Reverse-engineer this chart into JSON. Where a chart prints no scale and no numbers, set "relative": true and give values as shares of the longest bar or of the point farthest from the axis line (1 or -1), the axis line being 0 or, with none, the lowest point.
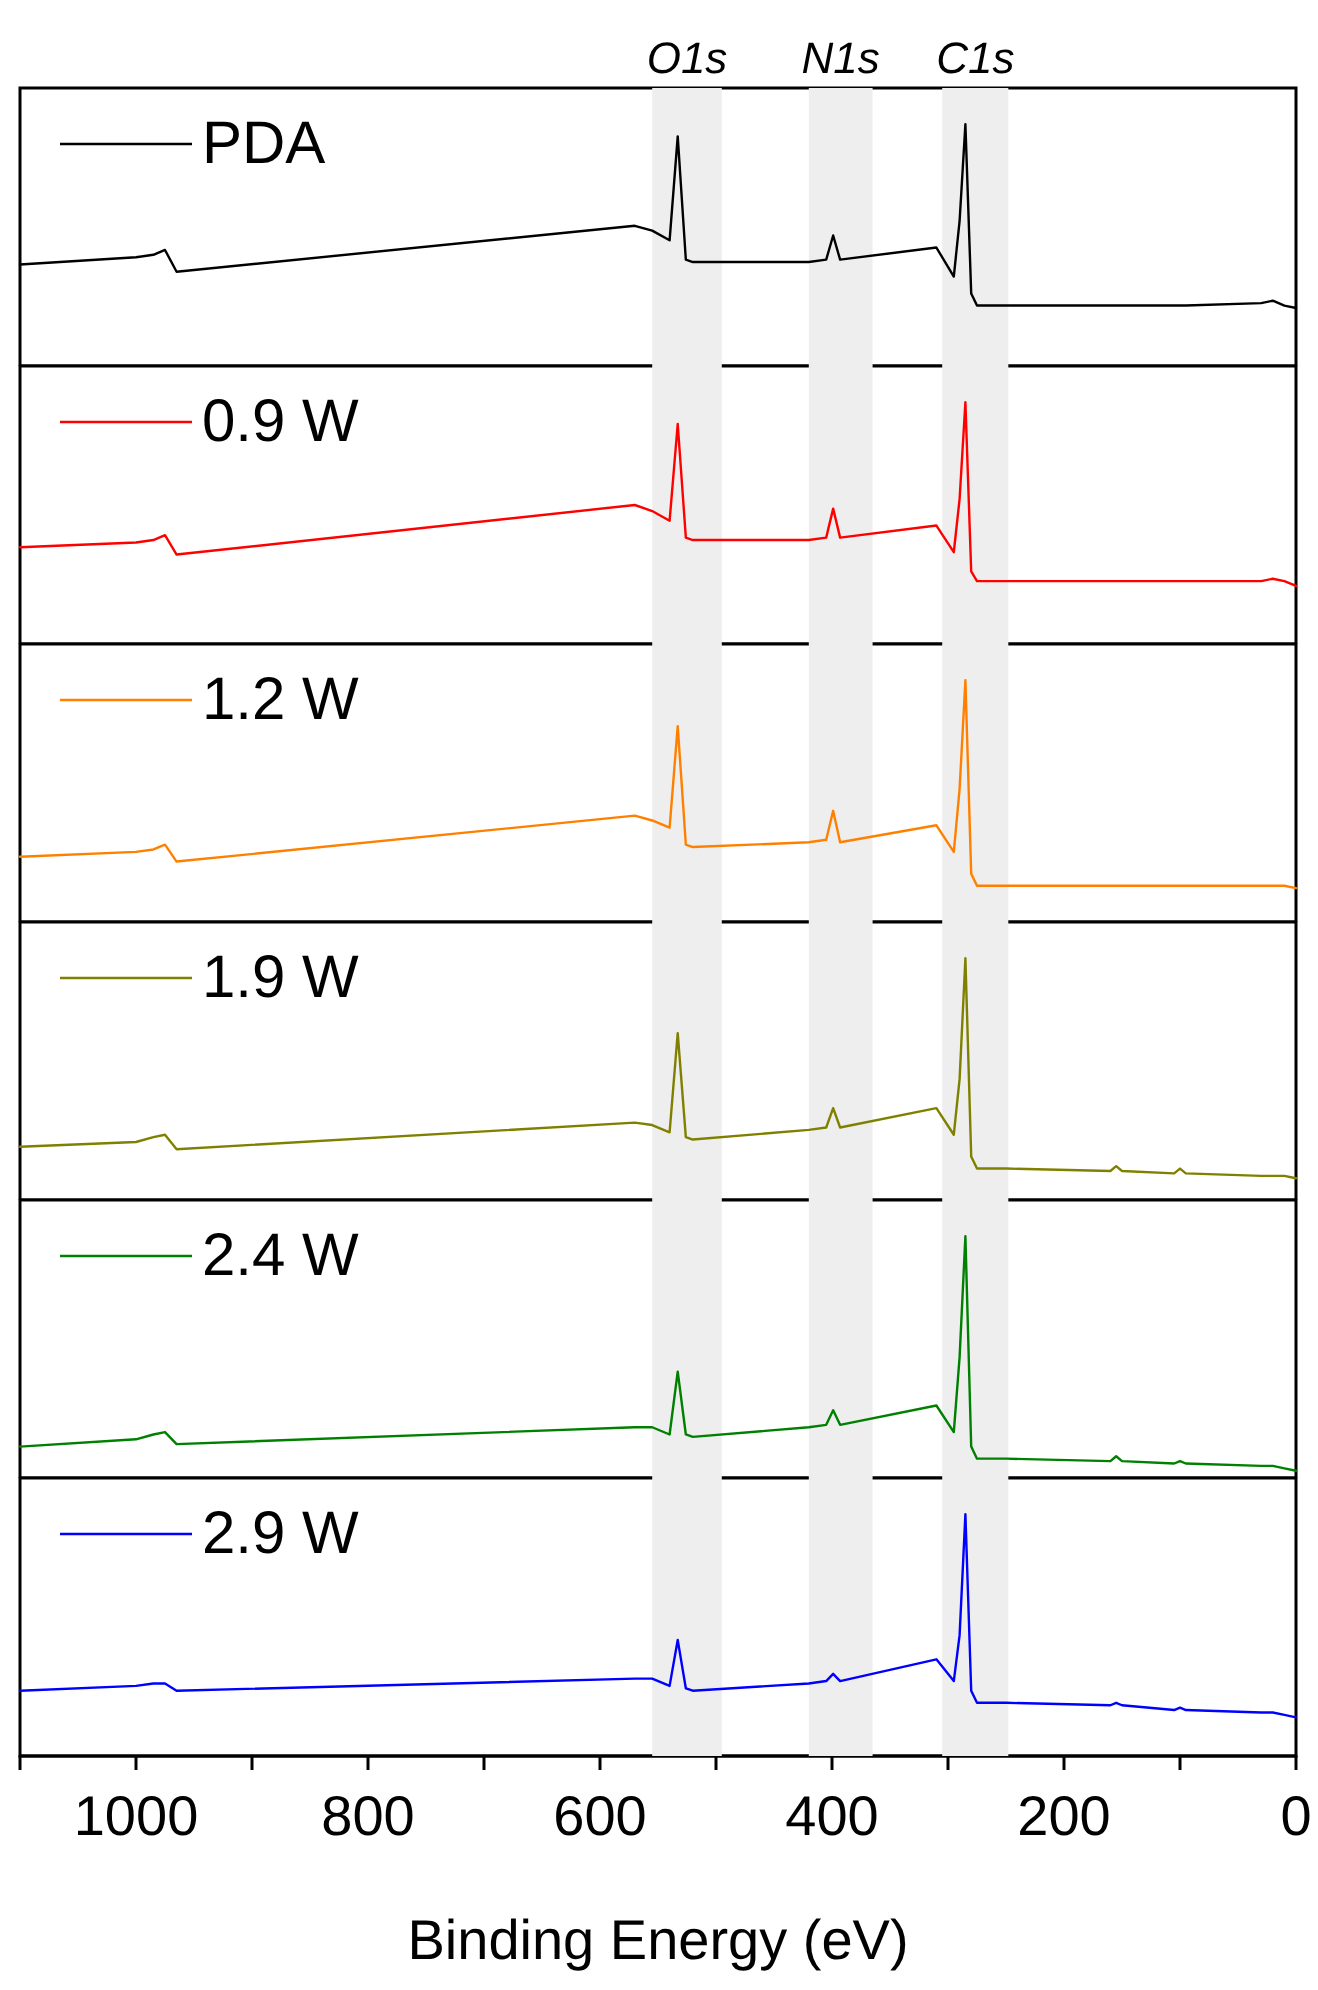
{
  "chart_data": [
    {
      "type": "line",
      "relative": true,
      "legend": "top left",
      "marker": "none",
      "line_style": "solid",
      "tick_labels": false,
      "xlim": [
        1100,
        0
      ],
      "x": [
        1100,
        1000,
        985,
        975,
        965,
        570,
        555,
        540,
        533,
        526,
        520,
        420,
        405,
        399,
        393,
        310,
        295,
        290,
        285,
        280,
        275,
        250,
        160,
        155,
        150,
        105,
        100,
        95,
        30,
        20,
        10,
        0
      ],
      "series": [
        {
          "name": "PDA",
          "color": "#000000",
          "values": [
            0.42,
            0.45,
            0.46,
            0.48,
            0.39,
            0.58,
            0.56,
            0.52,
            0.95,
            0.44,
            0.43,
            0.43,
            0.44,
            0.54,
            0.44,
            0.49,
            0.37,
            0.6,
            1,
            0.3,
            0.25,
            0.25,
            0.25,
            0.25,
            0.25,
            0.25,
            0.25,
            0.25,
            0.26,
            0.27,
            0.25,
            0.24
          ]
        }
      ],
      "bands": [
        {
          "axis": "x",
          "from": 555,
          "to": 495,
          "label": "O1s",
          "color": "#eeeeee"
        },
        {
          "axis": "x",
          "from": 420,
          "to": 365,
          "label": "N1s",
          "color": "#eeeeee"
        },
        {
          "axis": "x",
          "from": 305,
          "to": 248,
          "label": "C1s",
          "color": "#eeeeee"
        }
      ]
    },
    {
      "type": "line",
      "relative": true,
      "legend": "top left",
      "marker": "none",
      "line_style": "solid",
      "tick_labels": false,
      "xlim": [
        1100,
        0
      ],
      "x": [
        1100,
        1000,
        985,
        975,
        965,
        570,
        555,
        540,
        533,
        526,
        520,
        420,
        405,
        399,
        393,
        310,
        295,
        290,
        285,
        280,
        275,
        250,
        160,
        155,
        150,
        105,
        100,
        95,
        30,
        20,
        10,
        0
      ],
      "series": [
        {
          "name": "0.9 W",
          "color": "#ff0000",
          "values": [
            0.4,
            0.42,
            0.43,
            0.45,
            0.37,
            0.575,
            0.55,
            0.51,
            0.91,
            0.44,
            0.43,
            0.43,
            0.44,
            0.56,
            0.44,
            0.49,
            0.38,
            0.6,
            1,
            0.3,
            0.26,
            0.26,
            0.26,
            0.26,
            0.26,
            0.26,
            0.26,
            0.26,
            0.26,
            0.27,
            0.26,
            0.24
          ]
        }
      ],
      "bands": [
        {
          "axis": "x",
          "from": 555,
          "to": 495,
          "color": "#eeeeee"
        },
        {
          "axis": "x",
          "from": 420,
          "to": 365,
          "color": "#eeeeee"
        },
        {
          "axis": "x",
          "from": 305,
          "to": 248,
          "color": "#eeeeee"
        }
      ]
    },
    {
      "type": "line",
      "relative": true,
      "legend": "top left",
      "marker": "none",
      "line_style": "solid",
      "tick_labels": false,
      "xlim": [
        1100,
        0
      ],
      "x": [
        1100,
        1000,
        985,
        975,
        965,
        570,
        555,
        540,
        533,
        526,
        520,
        420,
        405,
        399,
        393,
        310,
        295,
        290,
        285,
        280,
        275,
        250,
        160,
        155,
        150,
        105,
        100,
        95,
        30,
        20,
        10,
        0
      ],
      "series": [
        {
          "name": "1.2 W",
          "color": "#ff8000",
          "values": [
            0.27,
            0.29,
            0.3,
            0.32,
            0.25,
            0.44,
            0.42,
            0.39,
            0.81,
            0.32,
            0.31,
            0.33,
            0.34,
            0.46,
            0.33,
            0.4,
            0.29,
            0.55,
            1,
            0.2,
            0.15,
            0.15,
            0.15,
            0.15,
            0.15,
            0.15,
            0.15,
            0.15,
            0.15,
            0.15,
            0.15,
            0.14
          ]
        }
      ],
      "bands": [
        {
          "axis": "x",
          "from": 555,
          "to": 495,
          "color": "#eeeeee"
        },
        {
          "axis": "x",
          "from": 420,
          "to": 365,
          "color": "#eeeeee"
        },
        {
          "axis": "x",
          "from": 305,
          "to": 248,
          "color": "#eeeeee"
        }
      ]
    },
    {
      "type": "line",
      "relative": true,
      "legend": "top left",
      "marker": "none",
      "line_style": "solid",
      "tick_labels": false,
      "xlim": [
        1100,
        0
      ],
      "x": [
        1100,
        1000,
        985,
        975,
        965,
        570,
        555,
        540,
        533,
        526,
        520,
        420,
        405,
        399,
        393,
        310,
        295,
        290,
        285,
        280,
        275,
        250,
        160,
        155,
        150,
        105,
        100,
        95,
        30,
        20,
        10,
        0
      ],
      "series": [
        {
          "name": "1.9 W",
          "color": "#808000",
          "values": [
            0.22,
            0.24,
            0.26,
            0.27,
            0.21,
            0.32,
            0.31,
            0.28,
            0.69,
            0.26,
            0.25,
            0.29,
            0.3,
            0.38,
            0.3,
            0.38,
            0.27,
            0.5,
            1,
            0.18,
            0.13,
            0.13,
            0.12,
            0.14,
            0.12,
            0.11,
            0.13,
            0.11,
            0.1,
            0.1,
            0.1,
            0.09
          ]
        }
      ],
      "bands": [
        {
          "axis": "x",
          "from": 555,
          "to": 495,
          "color": "#eeeeee"
        },
        {
          "axis": "x",
          "from": 420,
          "to": 365,
          "color": "#eeeeee"
        },
        {
          "axis": "x",
          "from": 305,
          "to": 248,
          "color": "#eeeeee"
        }
      ]
    },
    {
      "type": "line",
      "relative": true,
      "legend": "top left",
      "marker": "none",
      "line_style": "solid",
      "tick_labels": false,
      "xlim": [
        1100,
        0
      ],
      "x": [
        1100,
        1000,
        985,
        975,
        965,
        570,
        555,
        540,
        533,
        526,
        520,
        420,
        405,
        399,
        393,
        310,
        295,
        290,
        285,
        280,
        275,
        250,
        160,
        155,
        150,
        105,
        100,
        95,
        30,
        20,
        10,
        0
      ],
      "series": [
        {
          "name": "2.4 W",
          "color": "#008000",
          "values": [
            0.13,
            0.16,
            0.18,
            0.19,
            0.14,
            0.21,
            0.21,
            0.18,
            0.44,
            0.18,
            0.17,
            0.21,
            0.22,
            0.28,
            0.22,
            0.3,
            0.19,
            0.5,
            1,
            0.13,
            0.08,
            0.08,
            0.07,
            0.09,
            0.07,
            0.06,
            0.07,
            0.06,
            0.05,
            0.05,
            0.04,
            0.03
          ]
        }
      ],
      "bands": [
        {
          "axis": "x",
          "from": 555,
          "to": 495,
          "color": "#eeeeee"
        },
        {
          "axis": "x",
          "from": 420,
          "to": 365,
          "color": "#eeeeee"
        },
        {
          "axis": "x",
          "from": 305,
          "to": 248,
          "color": "#eeeeee"
        }
      ]
    },
    {
      "type": "line",
      "relative": true,
      "legend": "top left",
      "marker": "none",
      "line_style": "solid",
      "tick_labels": "x",
      "xlim": [
        1100,
        0
      ],
      "xticks": [
        {
          "value": 1100,
          "label": null
        },
        1000,
        {
          "value": 900,
          "label": null
        },
        800,
        {
          "value": 700,
          "label": null
        },
        600,
        {
          "value": 500,
          "label": null
        },
        400,
        {
          "value": 300,
          "label": null
        },
        200,
        {
          "value": 100,
          "label": null
        },
        0
      ],
      "xlabel": "Binding Energy (eV)",
      "x": [
        1100,
        1000,
        985,
        975,
        965,
        570,
        555,
        540,
        533,
        526,
        520,
        420,
        405,
        399,
        393,
        310,
        295,
        290,
        285,
        280,
        275,
        250,
        160,
        155,
        150,
        105,
        100,
        95,
        30,
        20,
        10,
        0
      ],
      "series": [
        {
          "name": "2.9 W",
          "color": "#0000ff",
          "values": [
            0.27,
            0.29,
            0.3,
            0.3,
            0.27,
            0.32,
            0.32,
            0.29,
            0.48,
            0.28,
            0.27,
            0.3,
            0.31,
            0.34,
            0.31,
            0.4,
            0.31,
            0.5,
            1,
            0.27,
            0.22,
            0.22,
            0.21,
            0.22,
            0.21,
            0.19,
            0.2,
            0.19,
            0.18,
            0.18,
            0.17,
            0.16
          ]
        }
      ],
      "bands": [
        {
          "axis": "x",
          "from": 555,
          "to": 495,
          "color": "#eeeeee"
        },
        {
          "axis": "x",
          "from": 420,
          "to": 365,
          "color": "#eeeeee"
        },
        {
          "axis": "x",
          "from": 305,
          "to": 248,
          "color": "#eeeeee"
        }
      ]
    }
  ]
}
